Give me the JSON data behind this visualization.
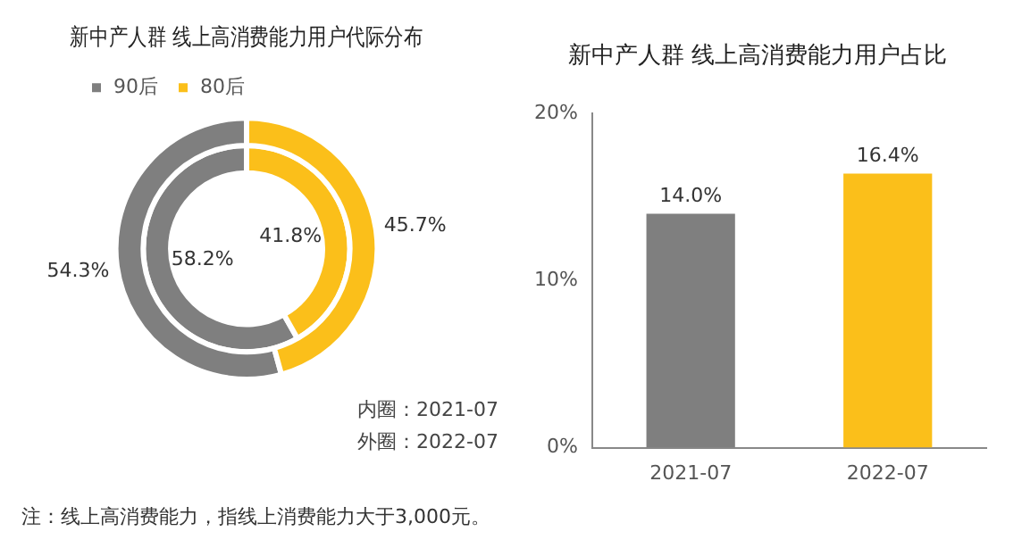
{
  "chart_data": [
    {
      "type": "donut",
      "title": "新中产人群 线上高消费能力用户代际分布",
      "categories": [
        "90后",
        "80后"
      ],
      "legend": "top",
      "series": [
        {
          "values": [
            54.3,
            45.7
          ],
          "colors": [
            "#7f7f7f",
            "#fbbf1a"
          ],
          "value_labels": [
            "54.3%",
            "45.7%"
          ]
        },
        {
          "values": [
            58.2,
            41.8
          ],
          "colors": [
            "#7f7f7f",
            "#fbbf1a"
          ],
          "value_labels": [
            "58.2%",
            "41.8%"
          ]
        }
      ],
      "annotations": [
        "内圈：2021-07",
        "外圈：2022-07",
        "注：线上高消费能力，指线上消费能力大于3,000元。"
      ]
    },
    {
      "type": "bar",
      "title": "新中产人群 线上高消费能力用户占比",
      "categories": [
        "2021-07",
        "2022-07"
      ],
      "values": [
        14.0,
        16.4
      ],
      "colors": [
        "#7f7f7f",
        "#fbbf1a"
      ],
      "value_labels": [
        "14.0%",
        "16.4%"
      ],
      "ylim": [
        0,
        20
      ],
      "yticks": [
        {
          "value": 0,
          "label": "0%"
        },
        {
          "value": 10,
          "label": "10%"
        },
        {
          "value": 20,
          "label": "20%"
        }
      ],
      "grid": false
    }
  ]
}
